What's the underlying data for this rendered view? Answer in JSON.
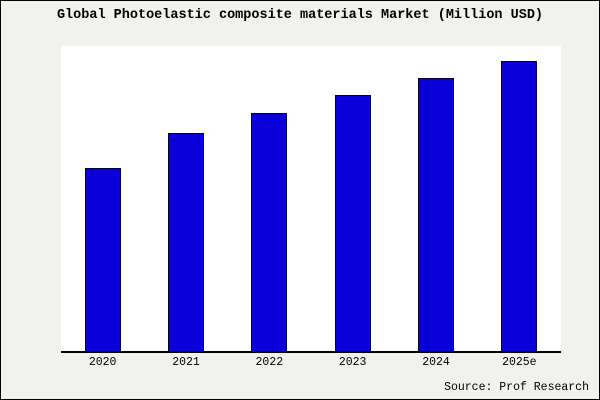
{
  "title": "Global Photoelastic composite materials Market (Million USD)",
  "source": "Source: Prof Research",
  "colors": {
    "bar_fill": "#0b00d9",
    "bar_edge": "#00003c",
    "background": "#f1f1ee",
    "plot_background": "#ffffff",
    "axis": "#000000"
  },
  "chart_data": {
    "type": "bar",
    "categories": [
      "2020",
      "2021",
      "2022",
      "2023",
      "2024",
      "2025e"
    ],
    "values": [
      63,
      75,
      82,
      88,
      94,
      100
    ],
    "title": "Global Photoelastic composite materials Market (Million USD)",
    "xlabel": "",
    "ylabel": "",
    "ylim": [
      0,
      105
    ],
    "grid": false,
    "legend": false,
    "annotation": "Source: Prof Research"
  }
}
